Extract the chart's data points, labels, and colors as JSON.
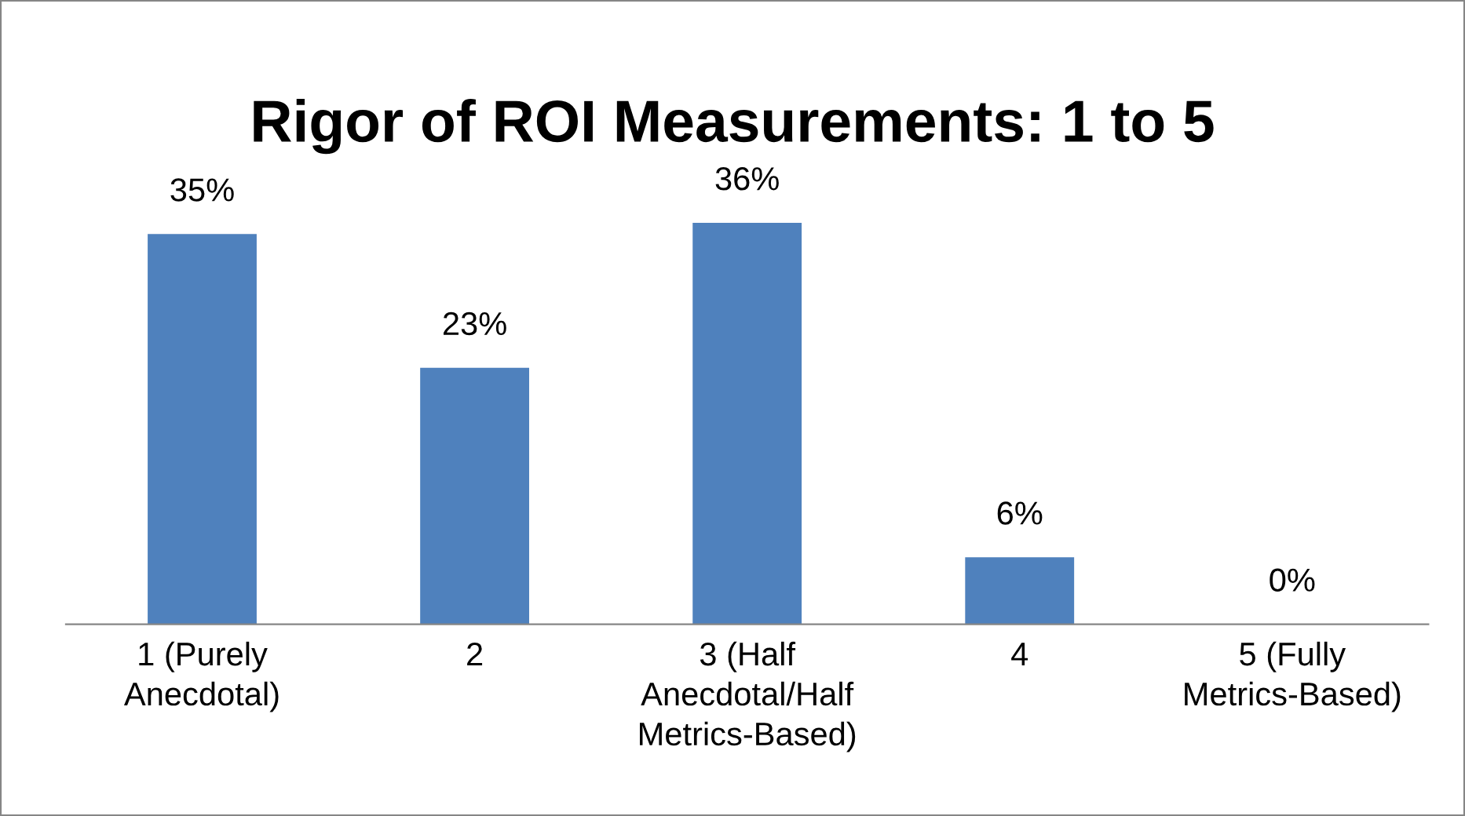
{
  "chart_data": {
    "type": "bar",
    "title": "Rigor of ROI Measurements: 1 to 5",
    "categories": [
      "1 (Purely\nAnecdotal)",
      "2",
      "3 (Half\nAnecdotal/Half\nMetrics-Based)",
      "4",
      "5 (Fully\nMetrics-Based)"
    ],
    "values": [
      35,
      23,
      36,
      6,
      0
    ],
    "value_labels": [
      "35%",
      "23%",
      "36%",
      "6%",
      "0%"
    ],
    "color": "#4f81bd",
    "grid": false,
    "legend": false
  }
}
